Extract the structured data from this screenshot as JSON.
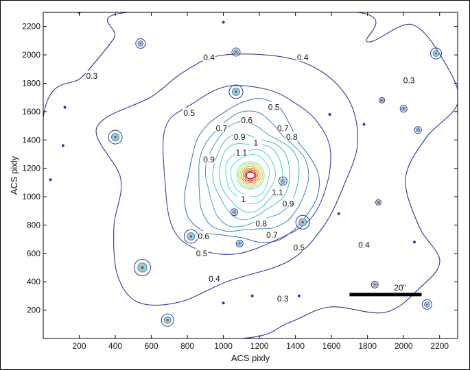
{
  "chart_data": {
    "type": "contour",
    "xlabel": "ACS  pixly",
    "ylabel": "ACS  pixly",
    "xlim": [
      0,
      2300
    ],
    "ylim": [
      0,
      2300
    ],
    "xticks": [
      200,
      400,
      600,
      800,
      1000,
      1200,
      1400,
      1600,
      1800,
      2000,
      2200
    ],
    "yticks": [
      200,
      400,
      600,
      800,
      1000,
      1200,
      1400,
      1600,
      1800,
      2000,
      2200
    ],
    "center": [
      1150,
      1150
    ],
    "contour_labels": [
      {
        "text": "0.3",
        "x": 1330,
        "y": 280
      },
      {
        "text": "0.3",
        "x": 270,
        "y": 1850
      },
      {
        "text": "0.3",
        "x": 2030,
        "y": 1820
      },
      {
        "text": "0.4",
        "x": 920,
        "y": 1980
      },
      {
        "text": "0.4",
        "x": 1440,
        "y": 1980
      },
      {
        "text": "0.4",
        "x": 1780,
        "y": 660
      },
      {
        "text": "0.4",
        "x": 950,
        "y": 420
      },
      {
        "text": "0.5",
        "x": 810,
        "y": 1590
      },
      {
        "text": "0.5",
        "x": 1280,
        "y": 1630
      },
      {
        "text": "0.5",
        "x": 1420,
        "y": 640
      },
      {
        "text": "0.5",
        "x": 880,
        "y": 600
      },
      {
        "text": "0.6",
        "x": 1130,
        "y": 1540
      },
      {
        "text": "0.6",
        "x": 890,
        "y": 720
      },
      {
        "text": "0.7",
        "x": 990,
        "y": 1480
      },
      {
        "text": "0.7",
        "x": 1330,
        "y": 1480
      },
      {
        "text": "0.7",
        "x": 1270,
        "y": 730
      },
      {
        "text": "0.8",
        "x": 1380,
        "y": 1420
      },
      {
        "text": "0.8",
        "x": 1210,
        "y": 810
      },
      {
        "text": "0.9",
        "x": 1090,
        "y": 1420
      },
      {
        "text": "0.9",
        "x": 920,
        "y": 1260
      },
      {
        "text": "0.9",
        "x": 1360,
        "y": 950
      },
      {
        "text": "1",
        "x": 1180,
        "y": 1380
      },
      {
        "text": "1",
        "x": 1110,
        "y": 980
      },
      {
        "text": "1.1",
        "x": 1100,
        "y": 1310
      },
      {
        "text": "1.1",
        "x": 1300,
        "y": 1030
      }
    ],
    "scale_bar": {
      "label": "20\"",
      "x_start": 1700,
      "x_end": 2100,
      "y": 310
    }
  }
}
